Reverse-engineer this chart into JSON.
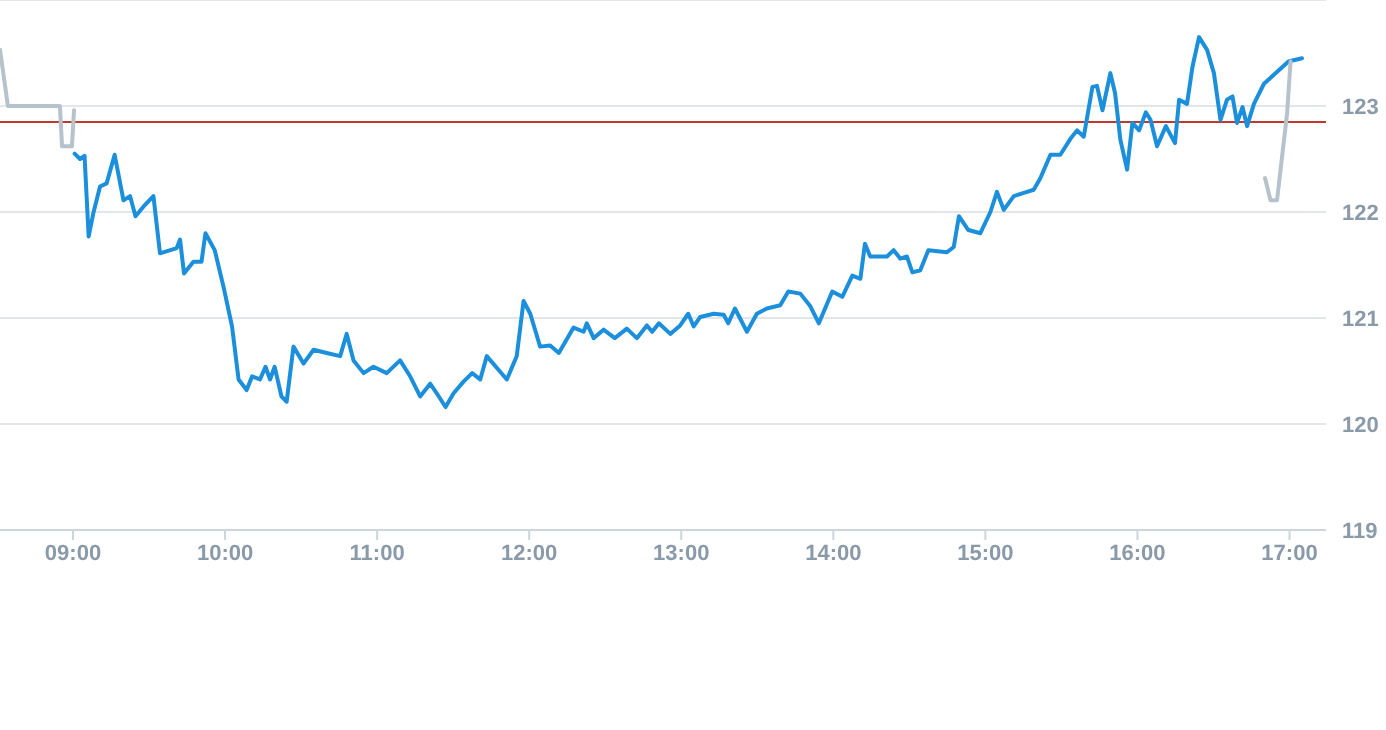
{
  "chart_data": {
    "type": "line",
    "xlim": [
      8.52,
      17.24
    ],
    "xticks": [
      {
        "value": 9,
        "label": "09:00"
      },
      {
        "value": 10,
        "label": "10:00"
      },
      {
        "value": 11,
        "label": "11:00"
      },
      {
        "value": 12,
        "label": "12:00"
      },
      {
        "value": 13,
        "label": "13:00"
      },
      {
        "value": 14,
        "label": "14:00"
      },
      {
        "value": 15,
        "label": "15:00"
      },
      {
        "value": 16,
        "label": "16:00"
      },
      {
        "value": 17,
        "label": "17:00"
      }
    ],
    "ylim": [
      119,
      124
    ],
    "yticks": [
      119,
      120,
      121,
      122,
      123
    ],
    "grid": "y",
    "marker": "none",
    "line_style": "solid",
    "ref_lines": [
      {
        "axis": "y",
        "value": 122.85,
        "color": "#c0392b"
      }
    ],
    "series": [
      {
        "color": "#b6c2cc",
        "x": [
          8.52,
          8.572,
          8.914,
          8.928,
          8.993,
          9.007
        ],
        "values": [
          123.53,
          123.0,
          123.0,
          122.62,
          122.62,
          122.96
        ]
      },
      {
        "color": "#1b8fdc",
        "x": [
          9.011,
          9.046,
          9.076,
          9.103,
          9.134,
          9.178,
          9.221,
          9.274,
          9.332,
          9.375,
          9.411,
          9.463,
          9.529,
          9.572,
          9.682,
          9.704,
          9.73,
          9.792,
          9.845,
          9.871,
          9.932,
          9.989,
          10.046,
          10.089,
          10.142,
          10.178,
          10.23,
          10.266,
          10.296,
          10.326,
          10.371,
          10.405,
          10.45,
          10.516,
          10.582,
          10.668,
          10.757,
          10.8,
          10.845,
          10.911,
          10.976,
          11.063,
          11.151,
          11.217,
          11.283,
          11.349,
          11.392,
          11.45,
          11.503,
          11.568,
          11.625,
          11.678,
          11.721,
          11.853,
          11.918,
          11.963,
          12.007,
          12.072,
          12.138,
          12.195,
          12.292,
          12.358,
          12.379,
          12.424,
          12.489,
          12.563,
          12.642,
          12.708,
          12.774,
          12.809,
          12.853,
          12.928,
          12.993,
          13.046,
          13.082,
          13.125,
          13.213,
          13.279,
          13.309,
          13.353,
          13.432,
          13.497,
          13.563,
          13.651,
          13.704,
          13.783,
          13.849,
          13.905,
          13.993,
          14.059,
          14.125,
          14.178,
          14.208,
          14.243,
          14.353,
          14.397,
          14.441,
          14.484,
          14.52,
          14.572,
          14.625,
          14.747,
          14.792,
          14.826,
          14.888,
          14.967,
          15.033,
          15.076,
          15.121,
          15.187,
          15.253,
          15.318,
          15.362,
          15.428,
          15.493,
          15.559,
          15.603,
          15.647,
          15.704,
          15.734,
          15.77,
          15.822,
          15.853,
          15.888,
          15.932,
          15.967,
          16.011,
          16.055,
          16.086,
          16.129,
          16.187,
          16.247,
          16.274,
          16.326,
          16.362,
          16.405,
          16.458,
          16.503,
          16.546,
          16.589,
          16.625,
          16.655,
          16.691,
          16.721,
          16.766,
          16.832,
          16.993,
          17.082
        ],
        "values": [
          122.55,
          122.5,
          122.53,
          121.77,
          121.99,
          122.24,
          122.27,
          122.54,
          122.11,
          122.15,
          121.96,
          122.05,
          122.15,
          121.61,
          121.66,
          121.74,
          121.42,
          121.53,
          121.53,
          121.8,
          121.64,
          121.3,
          120.92,
          120.42,
          120.32,
          120.45,
          120.42,
          120.54,
          120.42,
          120.54,
          120.26,
          120.21,
          120.73,
          120.57,
          120.7,
          120.67,
          120.64,
          120.85,
          120.6,
          120.48,
          120.54,
          120.48,
          120.6,
          120.45,
          120.26,
          120.38,
          120.29,
          120.16,
          120.29,
          120.4,
          120.48,
          120.42,
          120.64,
          120.42,
          120.64,
          121.16,
          121.04,
          120.73,
          120.74,
          120.67,
          120.91,
          120.87,
          120.95,
          120.81,
          120.89,
          120.81,
          120.9,
          120.81,
          120.93,
          120.87,
          120.95,
          120.85,
          120.93,
          121.04,
          120.92,
          121.01,
          121.04,
          121.03,
          120.95,
          121.09,
          120.87,
          121.04,
          121.09,
          121.12,
          121.25,
          121.23,
          121.11,
          120.95,
          121.25,
          121.2,
          121.4,
          121.37,
          121.7,
          121.58,
          121.58,
          121.64,
          121.56,
          121.58,
          121.43,
          121.45,
          121.64,
          121.62,
          121.67,
          121.96,
          121.83,
          121.8,
          122.0,
          122.19,
          122.02,
          122.15,
          122.18,
          122.21,
          122.32,
          122.54,
          122.54,
          122.69,
          122.77,
          122.71,
          123.18,
          123.19,
          122.96,
          123.31,
          123.12,
          122.68,
          122.4,
          122.84,
          122.77,
          122.94,
          122.87,
          122.62,
          122.81,
          122.65,
          123.06,
          123.02,
          123.37,
          123.65,
          123.53,
          123.31,
          122.87,
          123.06,
          123.09,
          122.84,
          122.99,
          122.81,
          123.02,
          123.21,
          123.42,
          123.45
        ]
      },
      {
        "color": "#b6c2cc",
        "x": [
          16.839,
          16.875,
          16.918,
          16.984,
          17.007
        ],
        "values": [
          122.32,
          122.11,
          122.11,
          122.93,
          123.42
        ]
      }
    ]
  }
}
